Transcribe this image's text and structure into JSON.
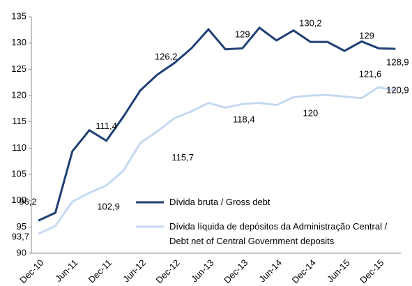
{
  "chart_data": {
    "type": "line",
    "categories": [
      "Dec-10",
      null,
      "Jun-11",
      null,
      "Dec-11",
      null,
      "Jun-12",
      null,
      "Dec-12",
      null,
      "Jun-13",
      null,
      "Dec-13",
      null,
      "Jun-14",
      null,
      "Dec-14",
      null,
      "Jun-15",
      null,
      "Dec-15",
      null
    ],
    "series": [
      {
        "name": "Dívida bruta / Gross debt",
        "color": "#1f3f73",
        "values": [
          96.2,
          97.7,
          109.4,
          113.4,
          111.4,
          116.0,
          121.0,
          124.0,
          126.2,
          129.0,
          132.6,
          128.8,
          129,
          132.9,
          130.5,
          132.4,
          130.2,
          130.2,
          128.5,
          130.3,
          129,
          128.9
        ],
        "value_labels": [
          "96,2",
          null,
          null,
          null,
          "111,4",
          null,
          null,
          null,
          "126,2",
          null,
          null,
          null,
          "129",
          null,
          null,
          null,
          "130,2",
          null,
          null,
          null,
          "129",
          "128,9"
        ]
      },
      {
        "name": "Dívida líquida de depósitos da Administração Central / Debt net of Central Government deposits",
        "color": "#c5d9f1",
        "values": [
          93.7,
          95.2,
          99.8,
          101.5,
          102.9,
          105.7,
          111.0,
          113.2,
          115.7,
          117.0,
          118.6,
          117.7,
          118.4,
          118.6,
          118.2,
          119.7,
          120,
          120.1,
          119.8,
          119.5,
          121.6,
          120.9
        ],
        "value_labels": [
          "93,7",
          null,
          null,
          null,
          "102,9",
          null,
          null,
          null,
          "115,7",
          null,
          null,
          null,
          "118,4",
          null,
          null,
          null,
          "120",
          null,
          null,
          null,
          "121,6",
          "120,9"
        ]
      }
    ],
    "ylim": [
      90,
      135
    ],
    "yticks": [
      90,
      95,
      100,
      105,
      110,
      115,
      120,
      125,
      130,
      135
    ]
  }
}
